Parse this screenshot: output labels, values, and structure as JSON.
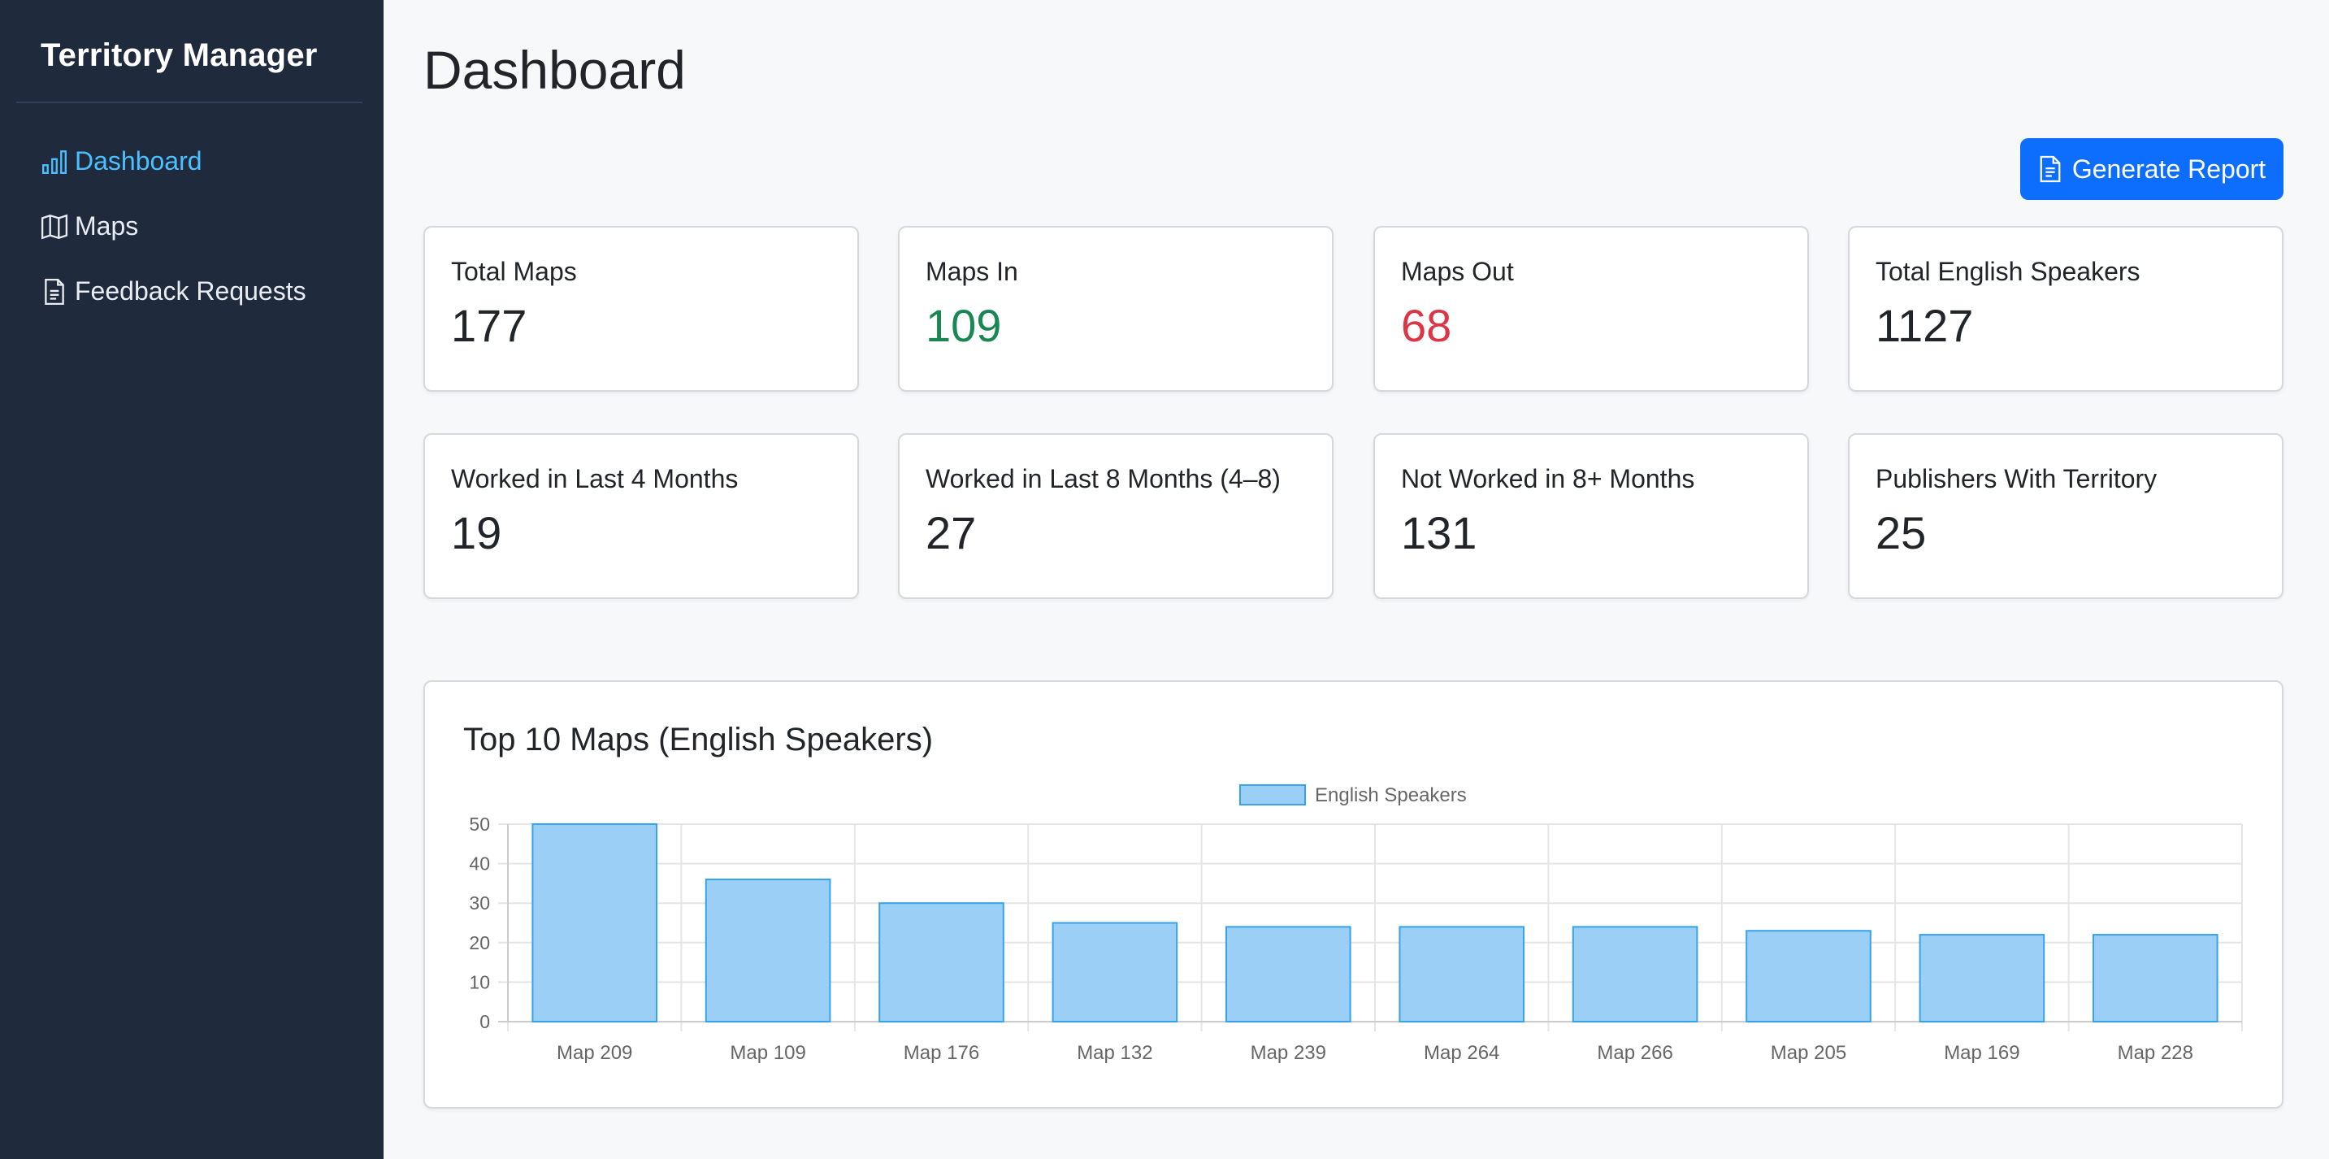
{
  "app": {
    "brand": "Territory Manager"
  },
  "sidebar": {
    "items": [
      {
        "label": "Dashboard",
        "icon": "bar-chart-icon",
        "active": true
      },
      {
        "label": "Maps",
        "icon": "map-icon",
        "active": false
      },
      {
        "label": "Feedback Requests",
        "icon": "file-text-icon",
        "active": false
      }
    ]
  },
  "header": {
    "title": "Dashboard",
    "report_button": "Generate Report"
  },
  "stats": [
    {
      "label": "Total Maps",
      "value": "177"
    },
    {
      "label": "Maps In",
      "value": "109",
      "color": "#198754"
    },
    {
      "label": "Maps Out",
      "value": "68",
      "color": "#dc3545"
    },
    {
      "label": "Total English Speakers",
      "value": "1127"
    },
    {
      "label": "Worked in Last 4 Months",
      "value": "19"
    },
    {
      "label": "Worked in Last 8 Months (4–8)",
      "value": "27"
    },
    {
      "label": "Not Worked in 8+ Months",
      "value": "131"
    },
    {
      "label": "Publishers With Territory",
      "value": "25"
    }
  ],
  "chart_card": {
    "title": "Top 10 Maps (English Speakers)"
  },
  "chart_data": {
    "type": "bar",
    "categories": [
      "Map 209",
      "Map 109",
      "Map 176",
      "Map 132",
      "Map 239",
      "Map 264",
      "Map 266",
      "Map 205",
      "Map 169",
      "Map 228"
    ],
    "series": [
      {
        "name": "English Speakers",
        "values": [
          50,
          36,
          30,
          25,
          24,
          24,
          24,
          23,
          22,
          22
        ]
      }
    ],
    "ylim": [
      0,
      50
    ],
    "yticks": [
      0,
      10,
      20,
      30,
      40,
      50
    ],
    "grid": true,
    "legend": "top",
    "colors": {
      "bar_fill": "#9ccff5",
      "bar_stroke": "#36a2eb",
      "grid": "#e5e5e5",
      "tick_text": "#666666"
    }
  }
}
